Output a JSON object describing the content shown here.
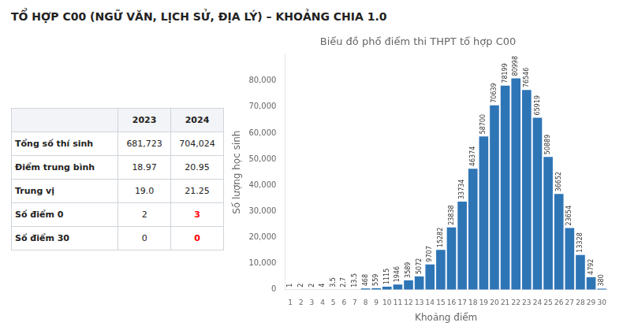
{
  "title": "TỔ HỢP C00 (NGỮ VĂN, LỊCH SỬ, ĐỊA LÝ) – KHOẢNG CHIA 1.0",
  "table": {
    "headers": [
      "2023",
      "2024"
    ],
    "rows": [
      [
        "Tổng số thí sinh",
        "681,723",
        "704,024"
      ],
      [
        "Điểm trung bình",
        "18.97",
        "20.95"
      ],
      [
        "Trung vị",
        "19.0",
        "21.25"
      ],
      [
        "Số điểm 0",
        "2",
        "3"
      ],
      [
        "Số điểm 30",
        "0",
        "0"
      ]
    ],
    "red_cells": [
      [
        3,
        2
      ],
      [
        4,
        2
      ]
    ]
  },
  "chart_data": {
    "type": "bar",
    "title": "Biểu đồ phổ điểm thi THPT tổ hợp C00",
    "x_label": "Khoảng điểm",
    "y_label": "Số lượng học sinh",
    "categories": [
      1,
      2,
      3,
      4,
      5,
      6,
      7,
      8,
      9,
      10,
      11,
      12,
      13,
      14,
      15,
      16,
      17,
      18,
      19,
      20,
      21,
      22,
      23,
      24,
      25,
      26,
      27,
      28,
      29,
      30
    ],
    "values": [
      1,
      2,
      2,
      4,
      3.5,
      2.7,
      13.5,
      468,
      559,
      1115,
      1946,
      3589,
      5072,
      9707,
      15282,
      23838,
      33734,
      46374,
      58700,
      70639,
      78199,
      80998,
      76546,
      65919,
      50889,
      36652,
      23654,
      13328,
      4792,
      380
    ],
    "color": "#2e75b6",
    "ylim": [
      0,
      90000
    ],
    "yticks": [
      0,
      {
        "value": 10000,
        "label": "10,000"
      },
      {
        "value": 20000,
        "label": "20,000"
      },
      {
        "value": 30000,
        "label": "30,000"
      },
      {
        "value": 40000,
        "label": "40,000"
      },
      {
        "value": 50000,
        "label": "50,000"
      },
      {
        "value": 60000,
        "label": "60,000"
      },
      {
        "value": 70000,
        "label": "70,000"
      },
      {
        "value": 80000,
        "label": "80,000"
      }
    ],
    "grid": false,
    "data_labels": true
  }
}
